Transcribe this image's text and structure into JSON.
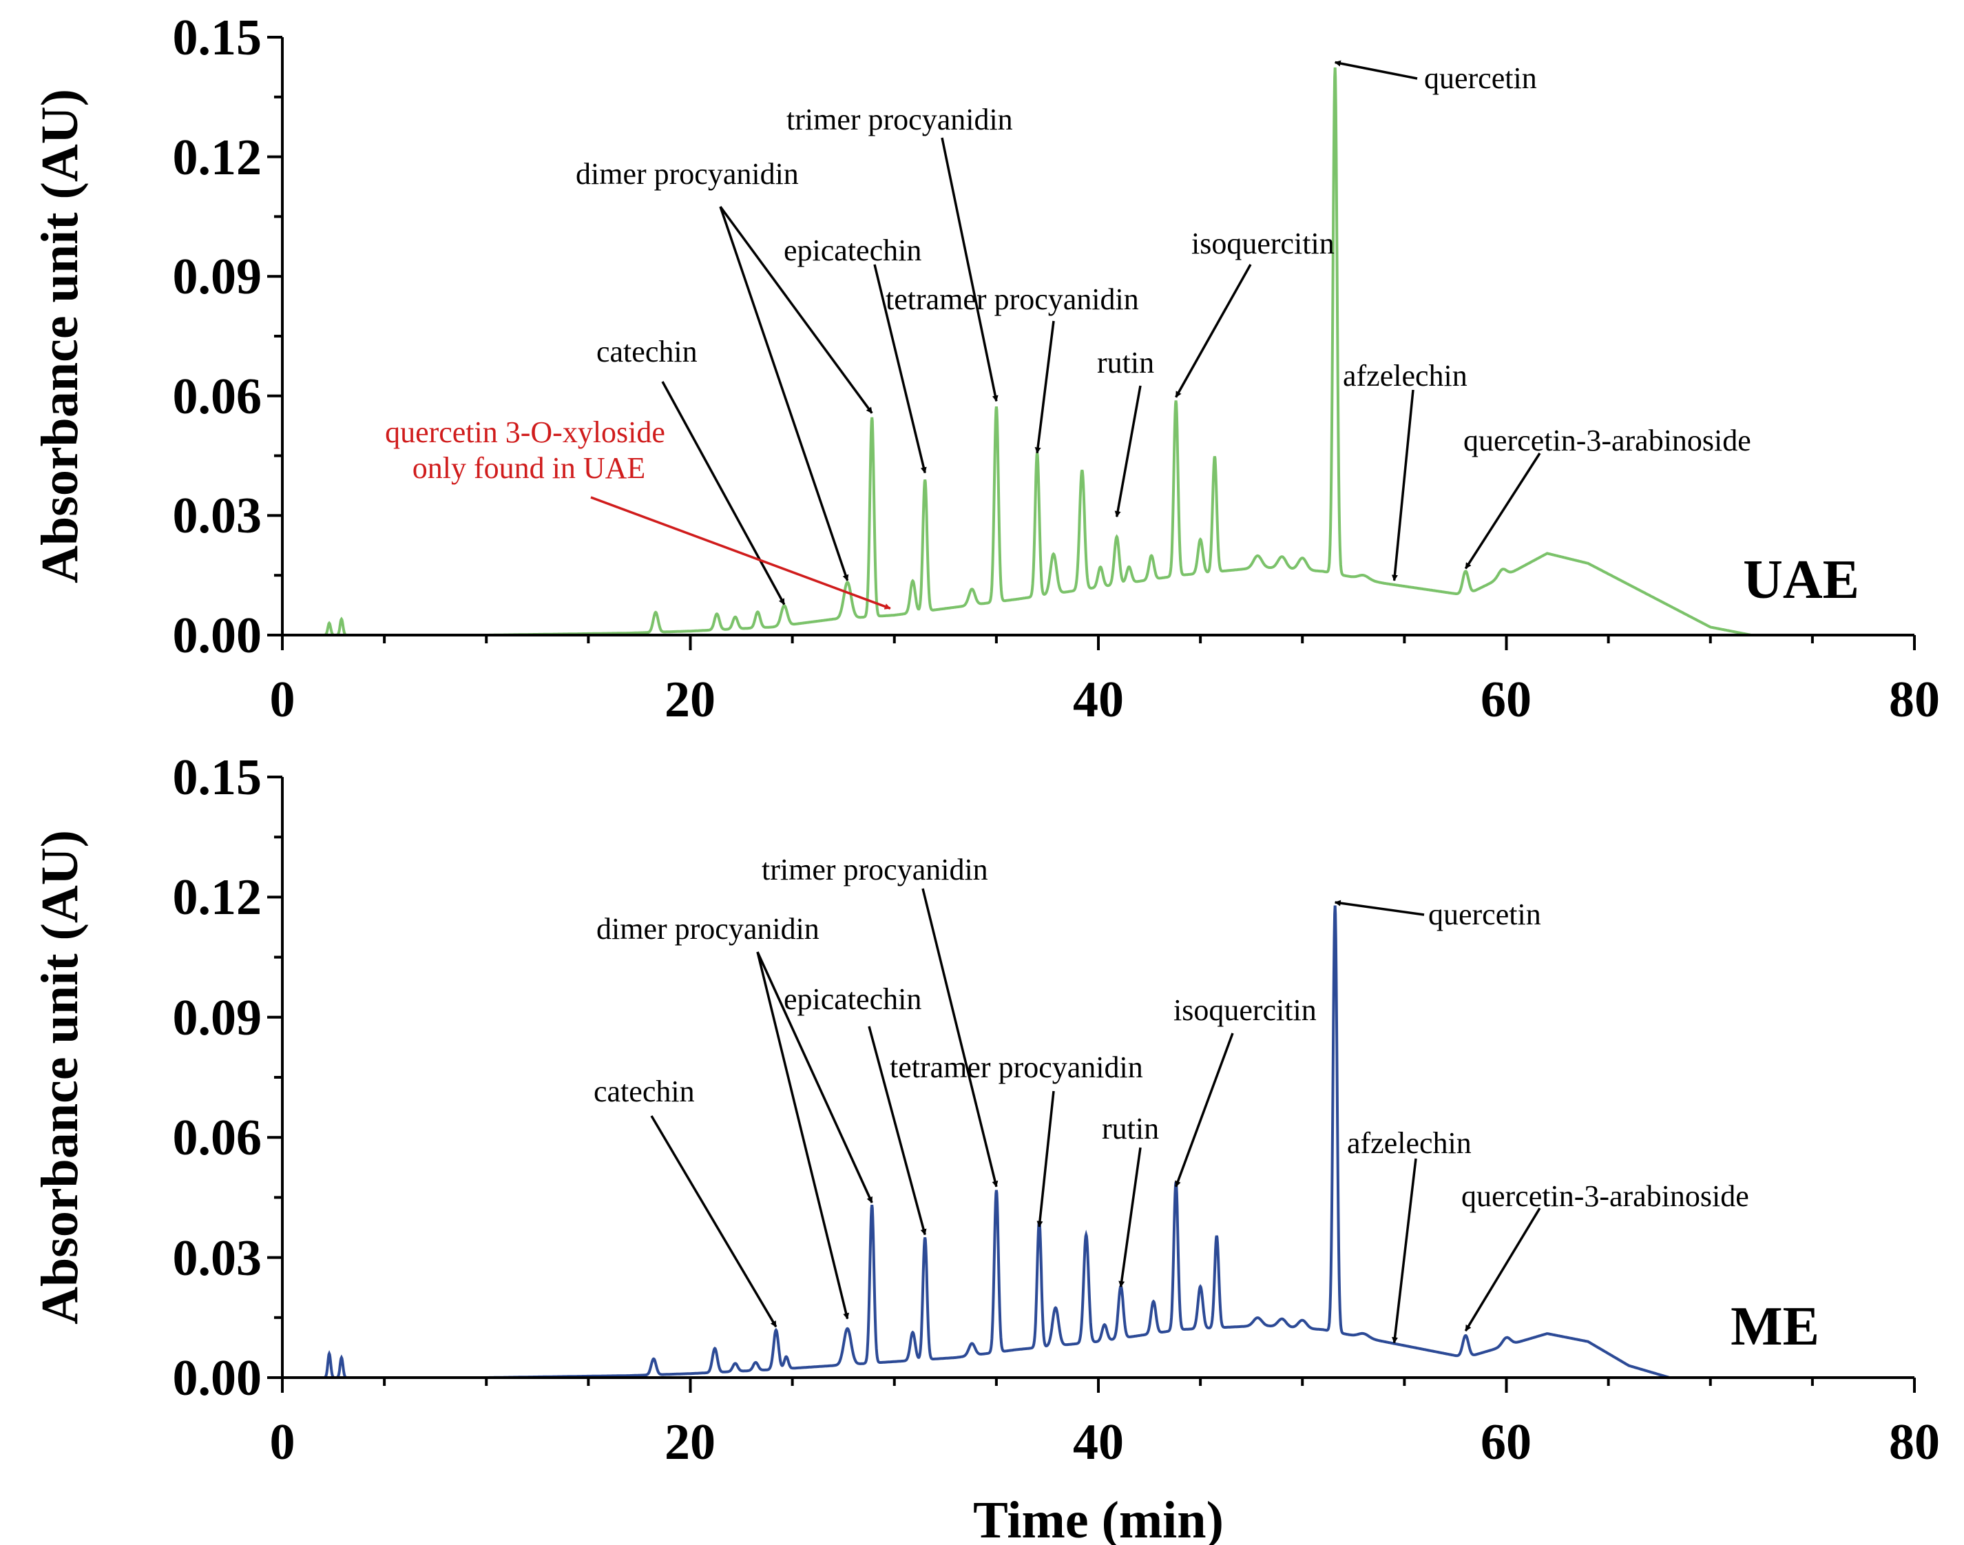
{
  "chart_data": [
    {
      "type": "line",
      "panel_label": "UAE",
      "color": "#7bc26a",
      "xlim": [
        0,
        80
      ],
      "ylim": [
        0,
        0.15
      ],
      "x_ticks": [
        "0",
        "20",
        "40",
        "60",
        "80"
      ],
      "y_ticks": [
        "0.00",
        "0.03",
        "0.06",
        "0.09",
        "0.12",
        "0.15"
      ],
      "ylabel": "Absorbance unit (AU)",
      "xlabel": "",
      "baseline": {
        "base_points": [
          [
            0,
            0.0
          ],
          [
            10,
            0.0
          ],
          [
            17,
            0.0005
          ],
          [
            20,
            0.001
          ],
          [
            24,
            0.002
          ],
          [
            27,
            0.004
          ],
          [
            30,
            0.005
          ],
          [
            33,
            0.007
          ],
          [
            36,
            0.009
          ],
          [
            40,
            0.012
          ],
          [
            44,
            0.015
          ],
          [
            48,
            0.017
          ],
          [
            51,
            0.016
          ],
          [
            54,
            0.013
          ],
          [
            58,
            0.01
          ],
          [
            60,
            0.015
          ],
          [
            62,
            0.0205
          ],
          [
            64,
            0.018
          ],
          [
            67,
            0.01
          ],
          [
            70,
            0.002
          ],
          [
            72,
            0.0
          ],
          [
            80,
            0.0
          ]
        ],
        "peaks": [
          [
            2.3,
            0.003,
            0.07
          ],
          [
            2.9,
            0.004,
            0.07
          ],
          [
            18.3,
            0.005,
            0.12
          ],
          [
            21.3,
            0.004,
            0.12
          ],
          [
            22.2,
            0.003,
            0.12
          ],
          [
            23.3,
            0.004,
            0.12
          ],
          [
            24.6,
            0.005,
            0.15
          ],
          [
            27.7,
            0.009,
            0.18
          ],
          [
            28.9,
            0.05,
            0.1
          ],
          [
            30.9,
            0.008,
            0.12
          ],
          [
            31.5,
            0.033,
            0.1
          ],
          [
            33.8,
            0.004,
            0.15
          ],
          [
            35.0,
            0.049,
            0.1
          ],
          [
            37.0,
            0.036,
            0.1
          ],
          [
            37.8,
            0.01,
            0.15
          ],
          [
            39.2,
            0.03,
            0.12
          ],
          [
            40.1,
            0.005,
            0.12
          ],
          [
            40.9,
            0.012,
            0.12
          ],
          [
            41.5,
            0.004,
            0.12
          ],
          [
            42.6,
            0.006,
            0.12
          ],
          [
            43.8,
            0.044,
            0.1
          ],
          [
            45.0,
            0.0085,
            0.12
          ],
          [
            45.7,
            0.029,
            0.1
          ],
          [
            47.8,
            0.003,
            0.2
          ],
          [
            49.0,
            0.003,
            0.2
          ],
          [
            50.0,
            0.003,
            0.2
          ],
          [
            51.6,
            0.127,
            0.1
          ],
          [
            53.0,
            0.001,
            0.25
          ],
          [
            58.0,
            0.006,
            0.14
          ],
          [
            59.8,
            0.002,
            0.2
          ]
        ]
      },
      "annotations": [
        {
          "text": "quercetin",
          "peak_x": 51.6,
          "peak_y": 0.143
        },
        {
          "text": "trimer procyanidin",
          "peak_x": 35.0,
          "peak_y": 0.058
        },
        {
          "text": "dimer procyanidin",
          "peak_x": 28.9,
          "peak_y": 0.055
        },
        {
          "text": "dimer procyanidin",
          "peak_x": 27.7,
          "peak_y": 0.013
        },
        {
          "text": "epicatechin",
          "peak_x": 31.5,
          "peak_y": 0.04
        },
        {
          "text": "tetramer procyanidin",
          "peak_x": 37.0,
          "peak_y": 0.045
        },
        {
          "text": "isoquercitin",
          "peak_x": 43.8,
          "peak_y": 0.059
        },
        {
          "text": "rutin",
          "peak_x": 40.9,
          "peak_y": 0.029
        },
        {
          "text": "catechin",
          "peak_x": 24.6,
          "peak_y": 0.007
        },
        {
          "text": "afzelechin",
          "peak_x": 54.5,
          "peak_y": 0.013
        },
        {
          "text": "quercetin-3-arabinoside",
          "peak_x": 58.0,
          "peak_y": 0.016
        },
        {
          "text": "quercetin 3-O-xyloside only found in UAE",
          "peak_x": 29.8,
          "peak_y": 0.006
        }
      ]
    },
    {
      "type": "line",
      "panel_label": "ME",
      "color": "#2c4a96",
      "xlim": [
        0,
        80
      ],
      "ylim": [
        0,
        0.15
      ],
      "x_ticks": [
        "0",
        "20",
        "40",
        "60",
        "80"
      ],
      "y_ticks": [
        "0.00",
        "0.03",
        "0.06",
        "0.09",
        "0.12",
        "0.15"
      ],
      "ylabel": "Absorbance unit (AU)",
      "xlabel": "Time (min)",
      "baseline": {
        "base_points": [
          [
            0,
            0.0
          ],
          [
            10,
            0.0
          ],
          [
            17,
            0.0005
          ],
          [
            20,
            0.001
          ],
          [
            24,
            0.002
          ],
          [
            27,
            0.003
          ],
          [
            30,
            0.004
          ],
          [
            33,
            0.005
          ],
          [
            36,
            0.007
          ],
          [
            40,
            0.009
          ],
          [
            44,
            0.012
          ],
          [
            48,
            0.013
          ],
          [
            51,
            0.012
          ],
          [
            54,
            0.009
          ],
          [
            58,
            0.005
          ],
          [
            60,
            0.008
          ],
          [
            62,
            0.011
          ],
          [
            64,
            0.009
          ],
          [
            66,
            0.003
          ],
          [
            68,
            0.0
          ],
          [
            80,
            0.0
          ]
        ],
        "peaks": [
          [
            2.3,
            0.006,
            0.07
          ],
          [
            2.9,
            0.005,
            0.07
          ],
          [
            18.2,
            0.004,
            0.12
          ],
          [
            21.2,
            0.006,
            0.12
          ],
          [
            22.2,
            0.002,
            0.12
          ],
          [
            23.2,
            0.002,
            0.12
          ],
          [
            24.2,
            0.0098,
            0.12
          ],
          [
            24.7,
            0.003,
            0.1
          ],
          [
            27.7,
            0.009,
            0.18
          ],
          [
            28.9,
            0.0395,
            0.1
          ],
          [
            30.9,
            0.007,
            0.12
          ],
          [
            31.5,
            0.0305,
            0.1
          ],
          [
            33.8,
            0.003,
            0.15
          ],
          [
            35.0,
            0.0405,
            0.1
          ],
          [
            37.1,
            0.0315,
            0.1
          ],
          [
            37.9,
            0.0095,
            0.15
          ],
          [
            39.4,
            0.027,
            0.12
          ],
          [
            40.3,
            0.004,
            0.12
          ],
          [
            41.1,
            0.013,
            0.12
          ],
          [
            42.7,
            0.008,
            0.12
          ],
          [
            43.8,
            0.037,
            0.1
          ],
          [
            45.0,
            0.0105,
            0.12
          ],
          [
            45.8,
            0.023,
            0.1
          ],
          [
            47.8,
            0.002,
            0.2
          ],
          [
            49.0,
            0.002,
            0.2
          ],
          [
            50.0,
            0.002,
            0.2
          ],
          [
            51.6,
            0.1065,
            0.1
          ],
          [
            53.0,
            0.001,
            0.25
          ],
          [
            58.0,
            0.0055,
            0.14
          ],
          [
            60.0,
            0.002,
            0.2
          ]
        ]
      },
      "annotations": [
        {
          "text": "quercetin",
          "peak_x": 51.6,
          "peak_y": 0.118
        },
        {
          "text": "trimer procyanidin",
          "peak_x": 35.0,
          "peak_y": 0.047
        },
        {
          "text": "dimer procyanidin",
          "peak_x": 28.9,
          "peak_y": 0.043
        },
        {
          "text": "dimer procyanidin",
          "peak_x": 27.7,
          "peak_y": 0.014
        },
        {
          "text": "epicatechin",
          "peak_x": 31.5,
          "peak_y": 0.035
        },
        {
          "text": "tetramer procyanidin",
          "peak_x": 37.1,
          "peak_y": 0.037
        },
        {
          "text": "isoquercitin",
          "peak_x": 43.8,
          "peak_y": 0.047
        },
        {
          "text": "rutin",
          "peak_x": 41.1,
          "peak_y": 0.022
        },
        {
          "text": "catechin",
          "peak_x": 24.2,
          "peak_y": 0.012
        },
        {
          "text": "afzelechin",
          "peak_x": 54.5,
          "peak_y": 0.008
        },
        {
          "text": "quercetin-3-arabinoside",
          "peak_x": 58.0,
          "peak_y": 0.011
        }
      ]
    }
  ]
}
